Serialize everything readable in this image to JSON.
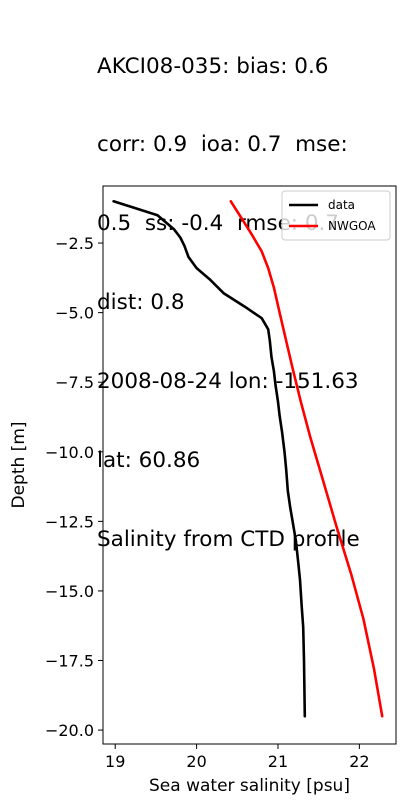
{
  "title_lines": [
    "AKCI08-035: bias: 0.6",
    "corr: 0.9  ioa: 0.7  mse:",
    "0.5  ss: -0.4  rmse: 0.7",
    "dist: 0.8",
    "2008-08-24 lon: -151.63",
    "lat: 60.86",
    "Salinity from CTD profile"
  ],
  "chart_data": {
    "type": "line",
    "title": "AKCI08-035: bias: 0.6 corr: 0.9 ioa: 0.7 mse: 0.5 ss: -0.4 rmse: 0.7 dist: 0.8 2008-08-24 lon: -151.63 lat: 60.86 Salinity from CTD profile",
    "xlabel": "Sea water salinity [psu]",
    "ylabel": "Depth [m]",
    "xlim": [
      18.85,
      22.45
    ],
    "ylim": [
      -20.5,
      -0.45
    ],
    "x_ticks": [
      19,
      20,
      21,
      22
    ],
    "x_tick_labels": [
      "19",
      "20",
      "21",
      "22"
    ],
    "y_ticks": [
      -2.5,
      -5.0,
      -7.5,
      -10.0,
      -12.5,
      -15.0,
      -17.5,
      -20.0
    ],
    "y_tick_labels": [
      "−2.5",
      "−5.0",
      "−7.5",
      "−10.0",
      "−12.5",
      "−15.0",
      "−17.5",
      "−20.0"
    ],
    "grid": false,
    "legend_position": "top-right",
    "series": [
      {
        "name": "data",
        "color": "#000000",
        "x": [
          18.98,
          19.52,
          19.72,
          19.8,
          19.85,
          19.9,
          20.0,
          20.16,
          20.33,
          20.6,
          20.8,
          20.88,
          20.9,
          20.92,
          20.95,
          20.97,
          21.0,
          21.02,
          21.05,
          21.08,
          21.1,
          21.12,
          21.15,
          21.18,
          21.22,
          21.25,
          21.27,
          21.29,
          21.31,
          21.32,
          21.33
        ],
        "y": [
          -1.0,
          -1.5,
          -2.0,
          -2.3,
          -2.6,
          -3.0,
          -3.4,
          -3.8,
          -4.3,
          -4.8,
          -5.2,
          -5.6,
          -6.0,
          -6.6,
          -7.1,
          -7.6,
          -8.2,
          -8.7,
          -9.3,
          -10.0,
          -10.6,
          -11.4,
          -12.0,
          -12.5,
          -13.2,
          -14.0,
          -14.6,
          -15.5,
          -16.3,
          -17.5,
          -19.5
        ]
      },
      {
        "name": "NWGOA",
        "color": "#ff0000",
        "x": [
          20.42,
          20.55,
          20.68,
          20.8,
          20.88,
          20.95,
          21.02,
          21.1,
          21.18,
          21.28,
          21.4,
          21.55,
          21.72,
          21.9,
          22.05,
          22.18,
          22.28
        ],
        "y": [
          -1.0,
          -1.6,
          -2.2,
          -2.8,
          -3.4,
          -4.1,
          -5.0,
          -6.0,
          -7.0,
          -8.2,
          -9.5,
          -11.0,
          -12.7,
          -14.4,
          -16.0,
          -17.8,
          -19.5
        ]
      }
    ]
  }
}
